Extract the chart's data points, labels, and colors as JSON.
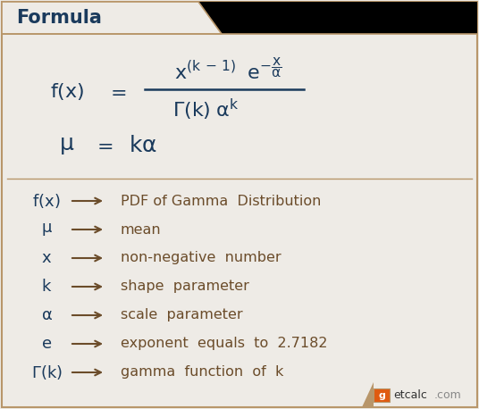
{
  "bg_color": "#eeebe6",
  "header_bg": "#1a3a5c",
  "header_text": "Formula",
  "header_text_color": "#ffffff",
  "formula_color": "#1a3a5c",
  "desc_color": "#6b4c2a",
  "arrow_color": "#6b4c2a",
  "border_color": "#b8966a",
  "title_fontsize": 15,
  "legend_items": [
    [
      "f(x)",
      "PDF of Gamma  Distribution"
    ],
    [
      "μ",
      "mean"
    ],
    [
      "x",
      "non-negative  number"
    ],
    [
      "k",
      "shape  parameter"
    ],
    [
      "α",
      "scale  parameter"
    ],
    [
      "e",
      "exponent  equals  to  2.7182"
    ],
    [
      "Γ(k)",
      "gamma  function  of  k"
    ]
  ]
}
